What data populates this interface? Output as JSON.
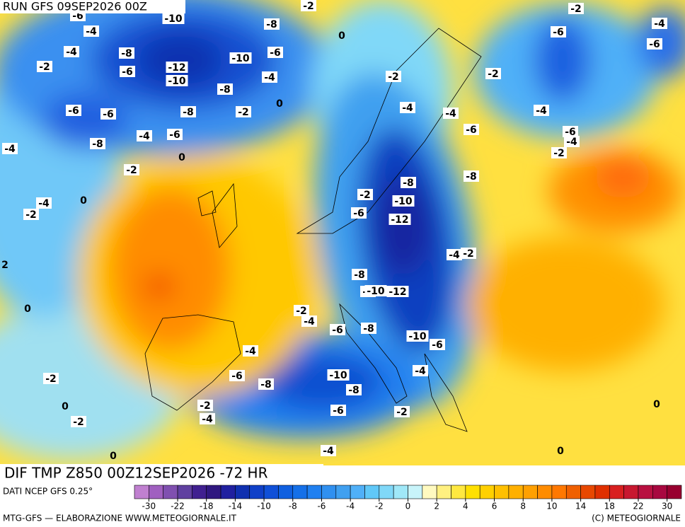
{
  "header": {
    "title": "RUN GFS 09SEP2026 00Z"
  },
  "map": {
    "contour_labels": [
      -6,
      -4,
      -10,
      -8,
      -2,
      0,
      -2,
      -6,
      -4,
      -6,
      -4,
      -8,
      -6,
      -2,
      -12,
      -10,
      -6,
      -10,
      -4,
      -8,
      -2,
      -2,
      -6,
      -6,
      -8,
      -2,
      0,
      -4,
      -4,
      -4,
      -6,
      -6,
      -4,
      -4,
      -8,
      -4,
      -6,
      0,
      -2,
      -2,
      -8,
      -8,
      -2,
      -4,
      0,
      -2,
      -6,
      -10,
      -12,
      -4,
      -2,
      2,
      -8,
      -8,
      -10,
      -12,
      0,
      -2,
      -4,
      -6,
      -8,
      -10,
      -6,
      -4,
      -4,
      -6,
      -10,
      -8,
      -8,
      -2,
      0,
      -2,
      -2,
      -4,
      -6,
      -2,
      0,
      -4,
      0,
      0
    ]
  },
  "footer": {
    "title": "DIF TMP Z850 00Z12SEP2026 -72 HR",
    "source": "DATI NCEP GFS 0.25°",
    "credit": "MTG-GFS — ELABORAZIONE WWW.METEOGIORNALE.IT",
    "copyright": "(C) METEOGIORNALE"
  },
  "colorbar": {
    "ticks": [
      -30,
      -22,
      -18,
      -14,
      -10,
      -8,
      -6,
      -4,
      -2,
      0,
      2,
      4,
      6,
      8,
      10,
      14,
      18,
      22,
      30
    ],
    "colors": [
      "#c080d0",
      "#a060c0",
      "#8050b0",
      "#6040a0",
      "#402090",
      "#301880",
      "#2020a0",
      "#1030b0",
      "#1040c8",
      "#1050d8",
      "#1060e0",
      "#1570e8",
      "#2080f0",
      "#3090f0",
      "#40a0f0",
      "#50b0f8",
      "#60c8f8",
      "#80d8f8",
      "#a0e8f8",
      "#c8f4fa",
      "#fffac0",
      "#fff080",
      "#ffe840",
      "#ffe000",
      "#ffd000",
      "#ffc000",
      "#ffb000",
      "#ffa000",
      "#ff8c00",
      "#ff7800",
      "#f06000",
      "#e84800",
      "#e03000",
      "#d82020",
      "#c81830",
      "#b81040",
      "#a80840",
      "#980030"
    ]
  }
}
